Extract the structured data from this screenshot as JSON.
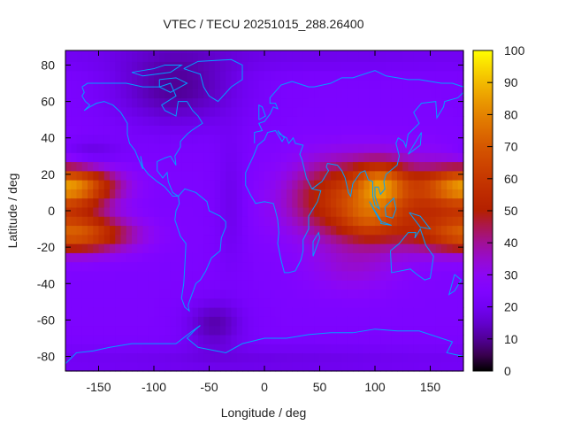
{
  "chart_data": {
    "type": "heatmap",
    "title": "VTEC / TECU 20251015_288.26400",
    "xlabel": "Longitude / deg",
    "ylabel": "Latitude / deg",
    "xlim": [
      -180,
      180
    ],
    "ylim": [
      -88,
      88
    ],
    "xticks": [
      -150,
      -100,
      -50,
      0,
      50,
      100,
      150
    ],
    "yticks": [
      -80,
      -60,
      -40,
      -20,
      0,
      20,
      40,
      60,
      80
    ],
    "colorbar": {
      "range": [
        0,
        100
      ],
      "ticks": [
        0,
        10,
        20,
        30,
        40,
        50,
        60,
        70,
        80,
        90,
        100
      ],
      "palette": "black-purple-red-orange-yellow"
    },
    "grid_resolution_deg": 5,
    "field_model": {
      "base": 24,
      "components": [
        {
          "lon": 100,
          "lat": 5,
          "sigma_lon": 50,
          "sigma_lat": 16,
          "amp": 34
        },
        {
          "lon": 105,
          "lat": 15,
          "sigma_lon": 16,
          "sigma_lat": 8,
          "amp": 30
        },
        {
          "lon": 95,
          "lat": -5,
          "sigma_lon": 18,
          "sigma_lat": 8,
          "amp": 16
        },
        {
          "lon": 60,
          "lat": 10,
          "sigma_lon": 25,
          "sigma_lat": 14,
          "amp": 10
        },
        {
          "lon": 80,
          "lat": -32,
          "sigma_lon": 30,
          "sigma_lat": 10,
          "amp": 8
        },
        {
          "lon": -175,
          "lat": 14,
          "sigma_lon": 30,
          "sigma_lat": 6,
          "amp": 30
        },
        {
          "lon": -170,
          "lat": -13,
          "sigma_lon": 35,
          "sigma_lat": 7,
          "amp": 40
        },
        {
          "lon": 185,
          "lat": 10,
          "sigma_lon": 25,
          "sigma_lat": 12,
          "amp": 25
        },
        {
          "lon": -80,
          "lat": 68,
          "sigma_lon": 40,
          "sigma_lat": 15,
          "amp": -14
        },
        {
          "lon": -160,
          "lat": 32,
          "sigma_lon": 20,
          "sigma_lat": 5,
          "amp": -10
        },
        {
          "lon": -45,
          "lat": -62,
          "sigma_lon": 18,
          "sigma_lat": 9,
          "amp": -12
        },
        {
          "lon": -30,
          "lat": 5,
          "sigma_lon": 10,
          "sigma_lat": 25,
          "amp": -6
        },
        {
          "lon": 0,
          "lat": -82,
          "sigma_lon": 120,
          "sigma_lat": 6,
          "amp": -6
        },
        {
          "lon": 60,
          "lat": 85,
          "sigma_lon": 120,
          "sigma_lat": 6,
          "amp": -5
        }
      ]
    },
    "coastlines": [
      [
        [
          -165,
          68
        ],
        [
          -160,
          70
        ],
        [
          -140,
          70
        ],
        [
          -125,
          70
        ],
        [
          -110,
          68
        ],
        [
          -95,
          68
        ],
        [
          -85,
          70
        ],
        [
          -80,
          63
        ],
        [
          -93,
          58
        ],
        [
          -90,
          55
        ],
        [
          -80,
          52
        ],
        [
          -78,
          60
        ],
        [
          -70,
          60
        ],
        [
          -65,
          55
        ],
        [
          -60,
          52
        ],
        [
          -56,
          48
        ],
        [
          -66,
          44
        ],
        [
          -70,
          42
        ],
        [
          -76,
          38
        ],
        [
          -76,
          35
        ],
        [
          -81,
          30
        ],
        [
          -80,
          25
        ],
        [
          -82,
          27
        ],
        [
          -85,
          30
        ],
        [
          -90,
          29
        ],
        [
          -97,
          27
        ],
        [
          -97,
          22
        ],
        [
          -92,
          18
        ],
        [
          -88,
          21
        ],
        [
          -87,
          16
        ],
        [
          -83,
          10
        ],
        [
          -78,
          8
        ],
        [
          -83,
          8
        ],
        [
          -90,
          13
        ],
        [
          -97,
          16
        ],
        [
          -105,
          20
        ],
        [
          -110,
          24
        ],
        [
          -112,
          30
        ],
        [
          -110,
          23
        ],
        [
          -115,
          30
        ],
        [
          -117,
          33
        ],
        [
          -122,
          37
        ],
        [
          -124,
          42
        ],
        [
          -124,
          48
        ],
        [
          -130,
          54
        ],
        [
          -137,
          58
        ],
        [
          -145,
          60
        ],
        [
          -152,
          59
        ],
        [
          -158,
          57
        ],
        [
          -163,
          55
        ],
        [
          -158,
          58
        ],
        [
          -162,
          60
        ],
        [
          -165,
          63
        ],
        [
          -163,
          65
        ],
        [
          -165,
          68
        ]
      ],
      [
        [
          -78,
          8
        ],
        [
          -72,
          12
        ],
        [
          -62,
          10
        ],
        [
          -52,
          5
        ],
        [
          -50,
          0
        ],
        [
          -40,
          -3
        ],
        [
          -35,
          -6
        ],
        [
          -35,
          -9
        ],
        [
          -39,
          -15
        ],
        [
          -40,
          -22
        ],
        [
          -48,
          -26
        ],
        [
          -53,
          -33
        ],
        [
          -58,
          -38
        ],
        [
          -62,
          -40
        ],
        [
          -65,
          -45
        ],
        [
          -68,
          -50
        ],
        [
          -69,
          -52
        ],
        [
          -68,
          -55
        ],
        [
          -72,
          -53
        ],
        [
          -75,
          -48
        ],
        [
          -73,
          -40
        ],
        [
          -72,
          -30
        ],
        [
          -71,
          -18
        ],
        [
          -76,
          -14
        ],
        [
          -81,
          -5
        ],
        [
          -80,
          0
        ],
        [
          -77,
          4
        ],
        [
          -78,
          8
        ]
      ],
      [
        [
          -73,
          78
        ],
        [
          -60,
          82
        ],
        [
          -30,
          83
        ],
        [
          -20,
          80
        ],
        [
          -20,
          72
        ],
        [
          -30,
          68
        ],
        [
          -42,
          60
        ],
        [
          -50,
          63
        ],
        [
          -55,
          68
        ],
        [
          -58,
          75
        ],
        [
          -73,
          78
        ]
      ],
      [
        [
          -95,
          72
        ],
        [
          -80,
          73
        ],
        [
          -70,
          70
        ],
        [
          -85,
          65
        ],
        [
          -95,
          68
        ],
        [
          -95,
          72
        ]
      ],
      [
        [
          -120,
          76
        ],
        [
          -100,
          78
        ],
        [
          -90,
          80
        ],
        [
          -75,
          80
        ],
        [
          -85,
          76
        ],
        [
          -110,
          74
        ],
        [
          -120,
          76
        ]
      ],
      [
        [
          -6,
          36
        ],
        [
          -10,
          30
        ],
        [
          -17,
          21
        ],
        [
          -17,
          14
        ],
        [
          -12,
          8
        ],
        [
          -8,
          4
        ],
        [
          0,
          5
        ],
        [
          8,
          4
        ],
        [
          10,
          0
        ],
        [
          12,
          -5
        ],
        [
          13,
          -12
        ],
        [
          12,
          -18
        ],
        [
          15,
          -27
        ],
        [
          18,
          -34
        ],
        [
          22,
          -34
        ],
        [
          28,
          -33
        ],
        [
          33,
          -27
        ],
        [
          35,
          -22
        ],
        [
          35,
          -16
        ],
        [
          40,
          -10
        ],
        [
          40,
          -3
        ],
        [
          43,
          0
        ],
        [
          48,
          5
        ],
        [
          51,
          11
        ],
        [
          43,
          12
        ],
        [
          38,
          18
        ],
        [
          34,
          28
        ],
        [
          32,
          31
        ],
        [
          35,
          36
        ],
        [
          28,
          37
        ],
        [
          26,
          40
        ],
        [
          22,
          37
        ],
        [
          20,
          40
        ],
        [
          14,
          42
        ],
        [
          12,
          44
        ],
        [
          18,
          40
        ],
        [
          16,
          38
        ],
        [
          10,
          44
        ],
        [
          3,
          43
        ],
        [
          0,
          39
        ],
        [
          -6,
          36
        ]
      ],
      [
        [
          -9,
          37
        ],
        [
          -9,
          43
        ],
        [
          -2,
          44
        ],
        [
          -5,
          48
        ],
        [
          0,
          49
        ],
        [
          5,
          53
        ],
        [
          8,
          57
        ],
        [
          12,
          56
        ],
        [
          10,
          59
        ],
        [
          5,
          59
        ],
        [
          5,
          62
        ],
        [
          15,
          69
        ],
        [
          25,
          71
        ],
        [
          40,
          68
        ],
        [
          45,
          68
        ],
        [
          60,
          70
        ],
        [
          70,
          73
        ],
        [
          80,
          73
        ],
        [
          100,
          77
        ],
        [
          110,
          74
        ],
        [
          130,
          72
        ],
        [
          140,
          72
        ],
        [
          160,
          70
        ],
        [
          170,
          70
        ],
        [
          180,
          68
        ]
      ],
      [
        [
          180,
          65
        ],
        [
          175,
          62
        ],
        [
          163,
          60
        ],
        [
          162,
          57
        ],
        [
          156,
          51
        ],
        [
          155,
          60
        ],
        [
          142,
          59
        ],
        [
          135,
          54
        ],
        [
          140,
          48
        ],
        [
          130,
          42
        ],
        [
          128,
          35
        ],
        [
          126,
          38
        ],
        [
          121,
          40
        ],
        [
          119,
          37
        ],
        [
          122,
          30
        ],
        [
          120,
          25
        ],
        [
          110,
          20
        ],
        [
          108,
          16
        ],
        [
          109,
          12
        ],
        [
          105,
          9
        ],
        [
          103,
          13
        ],
        [
          100,
          13
        ],
        [
          100,
          8
        ],
        [
          104,
          1
        ],
        [
          100,
          3
        ],
        [
          98,
          8
        ],
        [
          98,
          16
        ],
        [
          94,
          17
        ],
        [
          91,
          22
        ],
        [
          87,
          21
        ],
        [
          80,
          15
        ],
        [
          78,
          8
        ],
        [
          76,
          10
        ],
        [
          73,
          18
        ],
        [
          70,
          22
        ],
        [
          66,
          25
        ],
        [
          57,
          26
        ],
        [
          56,
          24
        ],
        [
          58,
          22
        ],
        [
          52,
          16
        ],
        [
          43,
          12
        ]
      ],
      [
        [
          114,
          -22
        ],
        [
          122,
          -18
        ],
        [
          130,
          -12
        ],
        [
          137,
          -12
        ],
        [
          136,
          -15
        ],
        [
          141,
          -10
        ],
        [
          146,
          -19
        ],
        [
          153,
          -25
        ],
        [
          150,
          -37
        ],
        [
          145,
          -38
        ],
        [
          138,
          -35
        ],
        [
          132,
          -32
        ],
        [
          115,
          -34
        ],
        [
          114,
          -22
        ]
      ],
      [
        [
          -180,
          -84
        ],
        [
          -170,
          -78
        ],
        [
          -155,
          -77
        ],
        [
          -140,
          -75
        ],
        [
          -120,
          -73
        ],
        [
          -100,
          -73
        ],
        [
          -80,
          -73
        ],
        [
          -65,
          -66
        ],
        [
          -58,
          -63
        ],
        [
          -62,
          -65
        ],
        [
          -70,
          -70
        ],
        [
          -60,
          -75
        ],
        [
          -35,
          -78
        ],
        [
          -20,
          -73
        ],
        [
          0,
          -70
        ],
        [
          20,
          -70
        ],
        [
          40,
          -68
        ],
        [
          60,
          -67
        ],
        [
          80,
          -67
        ],
        [
          100,
          -65
        ],
        [
          120,
          -66
        ],
        [
          140,
          -66
        ],
        [
          160,
          -70
        ],
        [
          170,
          -72
        ],
        [
          165,
          -78
        ],
        [
          180,
          -80
        ]
      ],
      [
        [
          109,
          2
        ],
        [
          117,
          7
        ],
        [
          119,
          1
        ],
        [
          116,
          -4
        ],
        [
          110,
          -3
        ],
        [
          109,
          2
        ]
      ],
      [
        [
          95,
          5
        ],
        [
          106,
          -6
        ],
        [
          104,
          -5
        ],
        [
          95,
          5
        ]
      ],
      [
        [
          130,
          31
        ],
        [
          141,
          36
        ],
        [
          142,
          43
        ],
        [
          140,
          41
        ],
        [
          130,
          31
        ]
      ],
      [
        [
          -5,
          50
        ],
        [
          1,
          52
        ],
        [
          -2,
          57
        ],
        [
          -5,
          58
        ],
        [
          -5,
          50
        ]
      ],
      [
        [
          44,
          -25
        ],
        [
          50,
          -15
        ],
        [
          49,
          -12
        ],
        [
          44,
          -17
        ],
        [
          44,
          -25
        ]
      ],
      [
        [
          172,
          -35
        ],
        [
          178,
          -38
        ],
        [
          172,
          -44
        ],
        [
          167,
          -46
        ],
        [
          172,
          -35
        ]
      ],
      [
        [
          131,
          -1
        ],
        [
          141,
          -3
        ],
        [
          150,
          -10
        ],
        [
          141,
          -9
        ],
        [
          131,
          -1
        ]
      ],
      [
        [
          105,
          -7
        ],
        [
          115,
          -8
        ],
        [
          106,
          -6
        ],
        [
          105,
          -7
        ]
      ]
    ]
  }
}
